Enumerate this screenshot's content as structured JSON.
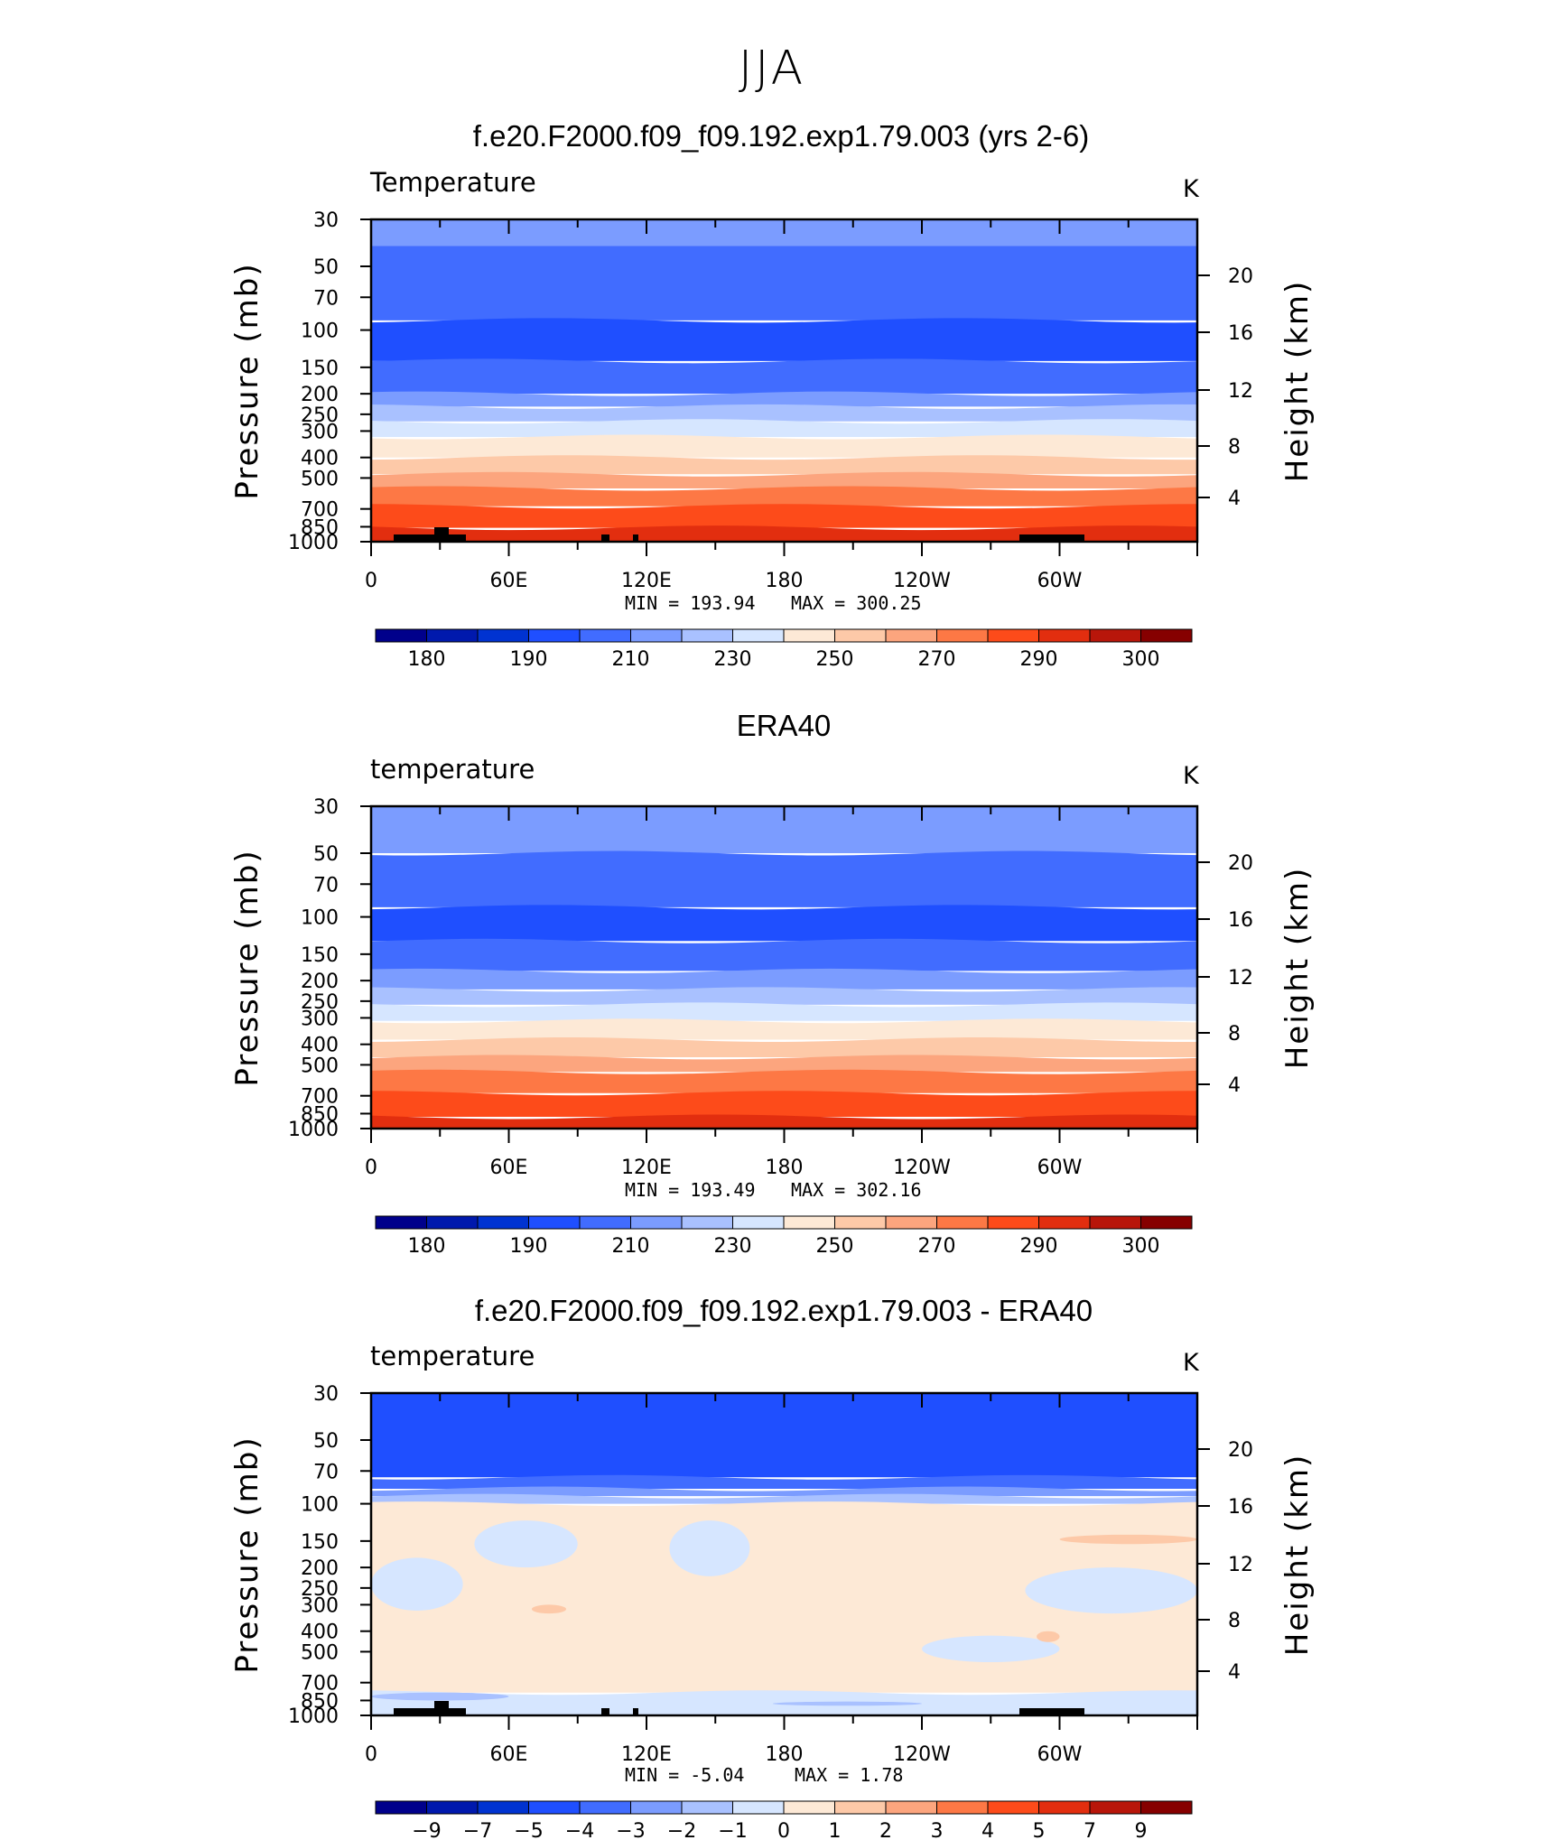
{
  "page_title": "JJA",
  "colors": {
    "temp_levels": [
      "#00008b",
      "#0019ad",
      "#0033d1",
      "#1f4fff",
      "#416cff",
      "#7b9cff",
      "#a9c1ff",
      "#d6e6ff",
      "#fde9d6",
      "#fdc9a8",
      "#fca57e",
      "#fd7845",
      "#fd4b1a",
      "#e22e0f",
      "#b8160a",
      "#860000"
    ],
    "diff_levels": [
      "#00008b",
      "#0019ad",
      "#0033d1",
      "#1f4fff",
      "#416cff",
      "#7b9cff",
      "#a9c1ff",
      "#d6e6ff",
      "#fde9d6",
      "#fdc9a8",
      "#fca57e",
      "#fd7845",
      "#fd4b1a",
      "#e22e0f",
      "#b8160a",
      "#860000"
    ],
    "topography": "#000000"
  },
  "chart_data": [
    {
      "type": "heatmap",
      "title": "f.e20.F2000.f09_f09.192.exp1.79.003 (yrs 2-6)",
      "variable_label": "Temperature",
      "units": "K",
      "ylabel": "Pressure (mb)",
      "ylabel_right": "Height (km)",
      "x_ticks": [
        "0",
        "60E",
        "120E",
        "180",
        "120W",
        "60W"
      ],
      "y_ticks": [
        "30",
        "50",
        "70",
        "100",
        "150",
        "200",
        "250",
        "300",
        "400",
        "500",
        "700",
        "850",
        "1000"
      ],
      "y_right_ticks": [
        "20",
        "16",
        "12",
        "8",
        "4"
      ],
      "xlim": [
        0,
        360
      ],
      "ylim": [
        1000,
        30
      ],
      "min_label": "MIN  =  193.94",
      "max_label": "MAX  =  300.25",
      "colorbar_labels": [
        "180",
        "190",
        "210",
        "230",
        "250",
        "270",
        "290",
        "300"
      ],
      "contours": [
        {
          "p_top": 30,
          "p_bottom": 40,
          "level": 5
        },
        {
          "p_top": 40,
          "p_bottom": 90,
          "level": 4
        },
        {
          "p_top": 90,
          "p_bottom": 140,
          "level": 3
        },
        {
          "p_top": 140,
          "p_bottom": 200,
          "level": 4
        },
        {
          "p_top": 200,
          "p_bottom": 230,
          "level": 5
        },
        {
          "p_top": 230,
          "p_bottom": 270,
          "level": 6
        },
        {
          "p_top": 270,
          "p_bottom": 320,
          "level": 7
        },
        {
          "p_top": 320,
          "p_bottom": 400,
          "level": 8
        },
        {
          "p_top": 400,
          "p_bottom": 480,
          "level": 9
        },
        {
          "p_top": 480,
          "p_bottom": 560,
          "level": 10
        },
        {
          "p_top": 560,
          "p_bottom": 680,
          "level": 11
        },
        {
          "p_top": 680,
          "p_bottom": 860,
          "level": 12
        },
        {
          "p_top": 860,
          "p_bottom": 1000,
          "level": 13
        }
      ],
      "topography": true
    },
    {
      "type": "heatmap",
      "title": "ERA40",
      "variable_label": "temperature",
      "units": "K",
      "ylabel": "Pressure (mb)",
      "ylabel_right": "Height (km)",
      "x_ticks": [
        "0",
        "60E",
        "120E",
        "180",
        "120W",
        "60W"
      ],
      "y_ticks": [
        "30",
        "50",
        "70",
        "100",
        "150",
        "200",
        "250",
        "300",
        "400",
        "500",
        "700",
        "850",
        "1000"
      ],
      "y_right_ticks": [
        "20",
        "16",
        "12",
        "8",
        "4"
      ],
      "xlim": [
        0,
        360
      ],
      "ylim": [
        1000,
        30
      ],
      "min_label": "MIN  =  193.49",
      "max_label": "MAX  =  302.16",
      "colorbar_labels": [
        "180",
        "190",
        "210",
        "230",
        "250",
        "270",
        "290",
        "300"
      ],
      "contours": [
        {
          "p_top": 30,
          "p_bottom": 50,
          "level": 5
        },
        {
          "p_top": 50,
          "p_bottom": 90,
          "level": 4
        },
        {
          "p_top": 90,
          "p_bottom": 130,
          "level": 3
        },
        {
          "p_top": 130,
          "p_bottom": 180,
          "level": 4
        },
        {
          "p_top": 180,
          "p_bottom": 220,
          "level": 5
        },
        {
          "p_top": 220,
          "p_bottom": 260,
          "level": 6
        },
        {
          "p_top": 260,
          "p_bottom": 310,
          "level": 7
        },
        {
          "p_top": 310,
          "p_bottom": 380,
          "level": 8
        },
        {
          "p_top": 380,
          "p_bottom": 460,
          "level": 9
        },
        {
          "p_top": 460,
          "p_bottom": 540,
          "level": 10
        },
        {
          "p_top": 540,
          "p_bottom": 680,
          "level": 11
        },
        {
          "p_top": 680,
          "p_bottom": 880,
          "level": 12
        },
        {
          "p_top": 880,
          "p_bottom": 1000,
          "level": 13
        }
      ],
      "topography": false
    },
    {
      "type": "heatmap",
      "title": "f.e20.F2000.f09_f09.192.exp1.79.003 - ERA40",
      "variable_label": "temperature",
      "units": "K",
      "ylabel": "Pressure (mb)",
      "ylabel_right": "Height (km)",
      "x_ticks": [
        "0",
        "60E",
        "120E",
        "180",
        "120W",
        "60W"
      ],
      "y_ticks": [
        "30",
        "50",
        "70",
        "100",
        "150",
        "200",
        "250",
        "300",
        "400",
        "500",
        "700",
        "850",
        "1000"
      ],
      "y_right_ticks": [
        "20",
        "16",
        "12",
        "8",
        "4"
      ],
      "xlim": [
        0,
        360
      ],
      "ylim": [
        1000,
        30
      ],
      "min_label": "MIN  =    -5.04",
      "max_label": "MAX  =     1.78",
      "colorbar_labels": [
        "-9",
        "-7",
        "-5",
        "-4",
        "-3",
        "-2",
        "-1",
        "0",
        "1",
        "2",
        "3",
        "4",
        "5",
        "7",
        "9"
      ],
      "contours": [
        {
          "p_top": 30,
          "p_bottom": 75,
          "level": 3
        },
        {
          "p_top": 75,
          "p_bottom": 85,
          "level": 4
        },
        {
          "p_top": 85,
          "p_bottom": 92,
          "level": 5
        },
        {
          "p_top": 92,
          "p_bottom": 100,
          "level": 6
        },
        {
          "p_top": 100,
          "p_bottom": 780,
          "level": 8
        },
        {
          "p_top": 780,
          "p_bottom": 1000,
          "level": 7
        }
      ],
      "patches": [
        {
          "lon0": 0,
          "lon1": 40,
          "p0": 180,
          "p1": 320,
          "level": 7
        },
        {
          "lon0": 45,
          "lon1": 90,
          "p0": 120,
          "p1": 200,
          "level": 7
        },
        {
          "lon0": 130,
          "lon1": 165,
          "p0": 120,
          "p1": 220,
          "level": 7
        },
        {
          "lon0": 285,
          "lon1": 360,
          "p0": 200,
          "p1": 330,
          "level": 7
        },
        {
          "lon0": 240,
          "lon1": 300,
          "p0": 420,
          "p1": 560,
          "level": 7
        },
        {
          "lon0": 300,
          "lon1": 360,
          "p0": 140,
          "p1": 155,
          "level": 9
        },
        {
          "lon0": 70,
          "lon1": 85,
          "p0": 300,
          "p1": 330,
          "level": 9
        },
        {
          "lon0": 290,
          "lon1": 300,
          "p0": 400,
          "p1": 450,
          "level": 9
        },
        {
          "lon0": 0,
          "lon1": 60,
          "p0": 780,
          "p1": 850,
          "level": 6
        },
        {
          "lon0": 175,
          "lon1": 240,
          "p0": 860,
          "p1": 900,
          "level": 6
        }
      ],
      "topography": true
    }
  ]
}
